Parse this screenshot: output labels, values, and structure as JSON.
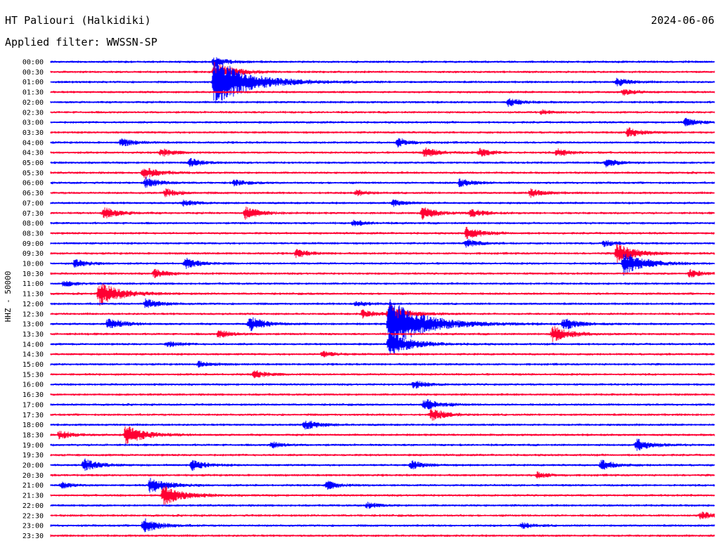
{
  "header": {
    "station": "HT Paliouri (Halkidiki)",
    "filter": "Applied filter: WWSSN-SP",
    "date": "2024-06-06"
  },
  "colors": {
    "odd_trace": "#0000ff",
    "even_trace": "#ff0033"
  },
  "chart_data": {
    "type": "line",
    "title": "",
    "xlabel": "",
    "ylabel": "HHZ - 50000",
    "grid": false,
    "categories": [
      "00:00",
      "00:30",
      "01:00",
      "01:30",
      "02:00",
      "02:30",
      "03:00",
      "03:30",
      "04:00",
      "04:30",
      "05:00",
      "05:30",
      "06:00",
      "06:30",
      "07:00",
      "07:30",
      "08:00",
      "08:30",
      "09:00",
      "09:30",
      "10:00",
      "10:30",
      "11:00",
      "11:30",
      "12:00",
      "12:30",
      "13:00",
      "13:30",
      "14:00",
      "14:30",
      "15:00",
      "15:30",
      "16:00",
      "16:30",
      "17:00",
      "17:30",
      "18:00",
      "18:30",
      "19:00",
      "19:30",
      "20:00",
      "20:30",
      "21:00",
      "21:30",
      "22:00",
      "22:30",
      "23:00",
      "23:30"
    ],
    "x_range": [
      0,
      30
    ],
    "events": [
      {
        "row": 0,
        "t": 7.4,
        "amp": 0.5
      },
      {
        "row": 1,
        "t": 7.4,
        "amp": 1.0
      },
      {
        "row": 2,
        "t": 7.4,
        "amp": 2.5
      },
      {
        "row": 2,
        "t": 25.6,
        "amp": 0.4
      },
      {
        "row": 3,
        "t": 25.9,
        "amp": 0.3
      },
      {
        "row": 4,
        "t": 20.7,
        "amp": 0.4
      },
      {
        "row": 5,
        "t": 22.2,
        "amp": 0.2
      },
      {
        "row": 6,
        "t": 28.7,
        "amp": 0.4
      },
      {
        "row": 7,
        "t": 26.1,
        "amp": 0.5
      },
      {
        "row": 8,
        "t": 3.2,
        "amp": 0.4
      },
      {
        "row": 8,
        "t": 15.7,
        "amp": 0.4
      },
      {
        "row": 9,
        "t": 5.0,
        "amp": 0.4
      },
      {
        "row": 9,
        "t": 16.9,
        "amp": 0.5
      },
      {
        "row": 9,
        "t": 19.4,
        "amp": 0.4
      },
      {
        "row": 9,
        "t": 22.9,
        "amp": 0.4
      },
      {
        "row": 10,
        "t": 6.3,
        "amp": 0.4
      },
      {
        "row": 10,
        "t": 25.1,
        "amp": 0.4
      },
      {
        "row": 11,
        "t": 4.2,
        "amp": 0.6
      },
      {
        "row": 12,
        "t": 4.3,
        "amp": 0.5
      },
      {
        "row": 12,
        "t": 8.3,
        "amp": 0.3
      },
      {
        "row": 12,
        "t": 18.5,
        "amp": 0.4
      },
      {
        "row": 13,
        "t": 5.2,
        "amp": 0.4
      },
      {
        "row": 13,
        "t": 13.8,
        "amp": 0.3
      },
      {
        "row": 13,
        "t": 21.7,
        "amp": 0.4
      },
      {
        "row": 14,
        "t": 6.0,
        "amp": 0.3
      },
      {
        "row": 14,
        "t": 15.5,
        "amp": 0.3
      },
      {
        "row": 15,
        "t": 2.4,
        "amp": 0.6
      },
      {
        "row": 15,
        "t": 8.8,
        "amp": 0.6
      },
      {
        "row": 15,
        "t": 16.8,
        "amp": 0.6
      },
      {
        "row": 15,
        "t": 19.0,
        "amp": 0.4
      },
      {
        "row": 16,
        "t": 13.7,
        "amp": 0.3
      },
      {
        "row": 17,
        "t": 18.8,
        "amp": 0.6
      },
      {
        "row": 18,
        "t": 18.8,
        "amp": 0.4
      },
      {
        "row": 18,
        "t": 25.0,
        "amp": 0.3
      },
      {
        "row": 19,
        "t": 11.1,
        "amp": 0.4
      },
      {
        "row": 19,
        "t": 25.6,
        "amp": 1.0
      },
      {
        "row": 20,
        "t": 1.1,
        "amp": 0.4
      },
      {
        "row": 20,
        "t": 6.1,
        "amp": 0.5
      },
      {
        "row": 20,
        "t": 25.9,
        "amp": 1.2
      },
      {
        "row": 21,
        "t": 4.7,
        "amp": 0.4
      },
      {
        "row": 21,
        "t": 28.9,
        "amp": 0.4
      },
      {
        "row": 22,
        "t": 0.6,
        "amp": 0.3
      },
      {
        "row": 23,
        "t": 2.2,
        "amp": 1.2
      },
      {
        "row": 24,
        "t": 4.3,
        "amp": 0.5
      },
      {
        "row": 24,
        "t": 13.8,
        "amp": 0.3
      },
      {
        "row": 25,
        "t": 14.1,
        "amp": 0.4
      },
      {
        "row": 25,
        "t": 15.3,
        "amp": 0.9
      },
      {
        "row": 26,
        "t": 2.6,
        "amp": 0.6
      },
      {
        "row": 26,
        "t": 9.0,
        "amp": 0.7
      },
      {
        "row": 26,
        "t": 15.3,
        "amp": 2.5
      },
      {
        "row": 26,
        "t": 23.2,
        "amp": 0.6
      },
      {
        "row": 27,
        "t": 7.6,
        "amp": 0.4
      },
      {
        "row": 27,
        "t": 22.7,
        "amp": 0.8
      },
      {
        "row": 28,
        "t": 5.3,
        "amp": 0.3
      },
      {
        "row": 28,
        "t": 15.3,
        "amp": 1.2
      },
      {
        "row": 29,
        "t": 12.3,
        "amp": 0.3
      },
      {
        "row": 30,
        "t": 6.7,
        "amp": 0.3
      },
      {
        "row": 31,
        "t": 9.2,
        "amp": 0.4
      },
      {
        "row": 32,
        "t": 16.4,
        "amp": 0.4
      },
      {
        "row": 34,
        "t": 16.9,
        "amp": 0.6
      },
      {
        "row": 35,
        "t": 17.2,
        "amp": 0.6
      },
      {
        "row": 36,
        "t": 11.5,
        "amp": 0.5
      },
      {
        "row": 37,
        "t": 0.4,
        "amp": 0.4
      },
      {
        "row": 37,
        "t": 3.4,
        "amp": 1.0
      },
      {
        "row": 38,
        "t": 10.0,
        "amp": 0.3
      },
      {
        "row": 38,
        "t": 26.5,
        "amp": 0.6
      },
      {
        "row": 40,
        "t": 1.5,
        "amp": 0.6
      },
      {
        "row": 40,
        "t": 6.4,
        "amp": 0.5
      },
      {
        "row": 40,
        "t": 16.3,
        "amp": 0.4
      },
      {
        "row": 40,
        "t": 24.9,
        "amp": 0.5
      },
      {
        "row": 41,
        "t": 22.0,
        "amp": 0.3
      },
      {
        "row": 42,
        "t": 0.5,
        "amp": 0.3
      },
      {
        "row": 42,
        "t": 4.5,
        "amp": 0.8
      },
      {
        "row": 42,
        "t": 12.5,
        "amp": 0.4
      },
      {
        "row": 43,
        "t": 5.1,
        "amp": 1.0
      },
      {
        "row": 44,
        "t": 14.3,
        "amp": 0.3
      },
      {
        "row": 45,
        "t": 29.4,
        "amp": 0.4
      },
      {
        "row": 46,
        "t": 4.2,
        "amp": 0.7
      },
      {
        "row": 46,
        "t": 21.3,
        "amp": 0.3
      }
    ]
  }
}
